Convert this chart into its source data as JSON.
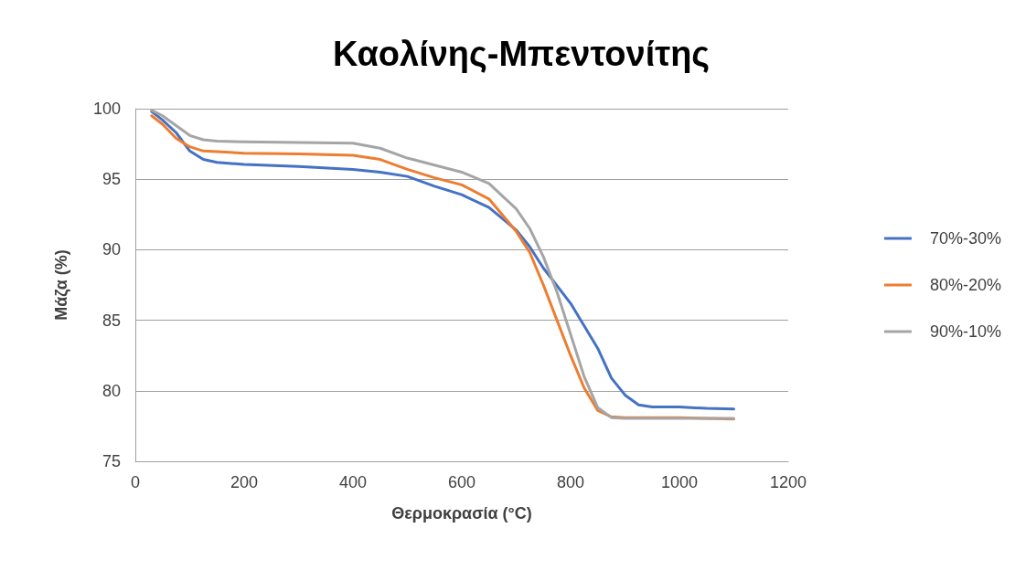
{
  "chart_data": {
    "type": "line",
    "title": "Καολίνης-Μπεντονίτης",
    "xlabel": "Θερμοκρασία (°C)",
    "ylabel": "Μάζα (%)",
    "xlim": [
      0,
      1200
    ],
    "xticks": [
      0,
      200,
      400,
      600,
      800,
      1000,
      1200
    ],
    "ylim": [
      75,
      100
    ],
    "yticks": [
      75,
      80,
      85,
      90,
      95,
      100
    ],
    "grid": "y",
    "legend": "right",
    "marker": "none",
    "line_style": "solid",
    "series": [
      {
        "name": "70%-30%",
        "color": "#4472c4",
        "x": [
          30,
          50,
          75,
          100,
          125,
          150,
          200,
          300,
          400,
          450,
          500,
          550,
          600,
          650,
          700,
          725,
          750,
          800,
          850,
          875,
          900,
          925,
          950,
          1000,
          1050,
          1100
        ],
        "values": [
          99.8,
          99.2,
          98.3,
          97.0,
          96.4,
          96.2,
          96.05,
          95.9,
          95.7,
          95.5,
          95.2,
          94.5,
          93.9,
          93.0,
          91.4,
          90.2,
          88.7,
          86.2,
          83.0,
          80.9,
          79.7,
          79.0,
          78.85,
          78.85,
          78.75,
          78.7
        ]
      },
      {
        "name": "80%-20%",
        "color": "#ed7d31",
        "x": [
          30,
          50,
          75,
          100,
          125,
          150,
          200,
          300,
          400,
          450,
          500,
          550,
          600,
          650,
          700,
          725,
          750,
          775,
          800,
          825,
          850,
          875,
          900,
          1000,
          1100
        ],
        "values": [
          99.5,
          98.9,
          97.9,
          97.3,
          97.0,
          96.95,
          96.85,
          96.8,
          96.7,
          96.4,
          95.7,
          95.1,
          94.6,
          93.6,
          91.3,
          89.8,
          87.5,
          85.0,
          82.5,
          80.2,
          78.6,
          78.15,
          78.1,
          78.1,
          78.0
        ]
      },
      {
        "name": "90%-10%",
        "color": "#a5a5a5",
        "x": [
          30,
          50,
          75,
          100,
          125,
          150,
          200,
          300,
          400,
          450,
          500,
          550,
          600,
          650,
          700,
          725,
          750,
          775,
          800,
          825,
          850,
          875,
          900,
          1000,
          1100
        ],
        "values": [
          99.9,
          99.5,
          98.8,
          98.1,
          97.8,
          97.7,
          97.65,
          97.6,
          97.55,
          97.2,
          96.5,
          96.0,
          95.5,
          94.7,
          92.9,
          91.5,
          89.5,
          87.0,
          84.0,
          81.0,
          78.8,
          78.1,
          78.05,
          78.05,
          78.05
        ]
      }
    ]
  }
}
